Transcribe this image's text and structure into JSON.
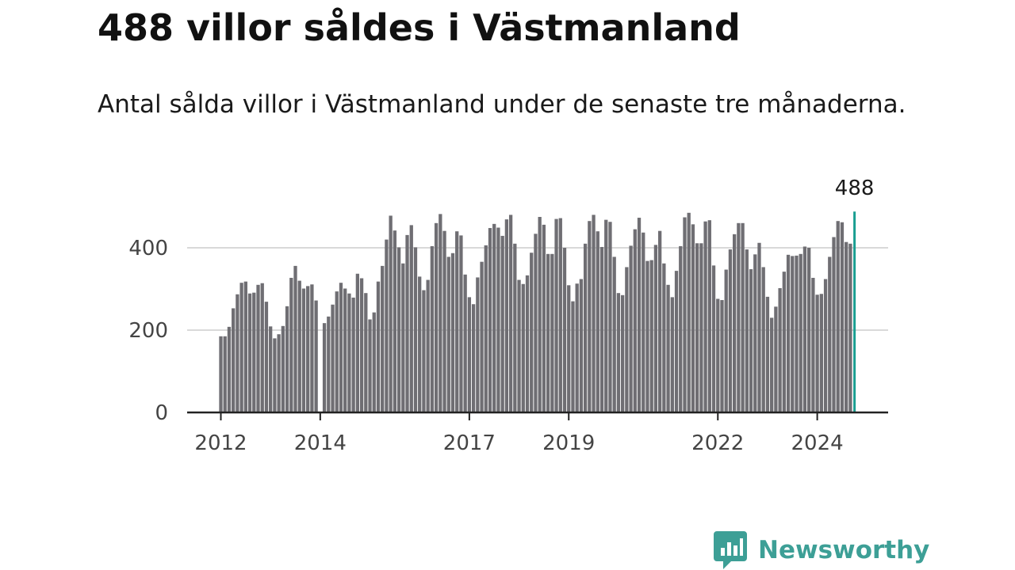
{
  "title": "488 villor såldes i Västmanland",
  "subtitle": "Antal sålda villor i Västmanland under de senaste tre månaderna.",
  "brand": {
    "name": "Newsworthy",
    "color": "#3d9f96",
    "icon": "newsworthy-chart-bubble-icon"
  },
  "colors": {
    "bar": "#6f6e73",
    "highlight": "#1a9e91",
    "grid": "#d9d9d9",
    "axis": "#222222"
  },
  "chart_data": {
    "type": "bar",
    "title": "488 villor såldes i Västmanland",
    "ylim": [
      0,
      500
    ],
    "yticks": [
      0,
      200,
      400
    ],
    "xticks": [
      2012,
      2014,
      2017,
      2019,
      2022,
      2024
    ],
    "x_start": "2012-01",
    "grid": true,
    "highlight": {
      "label": "488",
      "value": 488,
      "x": "2024-10"
    },
    "values": [
      185,
      185,
      208,
      253,
      287,
      315,
      318,
      289,
      291,
      310,
      314,
      269,
      209,
      180,
      190,
      210,
      258,
      327,
      356,
      320,
      301,
      307,
      311,
      272,
      null,
      217,
      233,
      262,
      294,
      315,
      301,
      289,
      279,
      337,
      326,
      290,
      226,
      243,
      318,
      356,
      420,
      478,
      442,
      401,
      362,
      431,
      455,
      401,
      330,
      297,
      322,
      404,
      460,
      482,
      441,
      378,
      387,
      440,
      430,
      335,
      280,
      263,
      328,
      366,
      406,
      448,
      458,
      449,
      429,
      469,
      480,
      410,
      322,
      312,
      333,
      388,
      434,
      475,
      456,
      385,
      385,
      470,
      472,
      400,
      309,
      270,
      313,
      324,
      410,
      465,
      480,
      440,
      402,
      468,
      463,
      378,
      290,
      285,
      353,
      405,
      445,
      473,
      437,
      368,
      370,
      407,
      441,
      362,
      310,
      280,
      344,
      404,
      474,
      485,
      457,
      411,
      411,
      464,
      467,
      357,
      276,
      273,
      347,
      396,
      433,
      460,
      460,
      396,
      348,
      384,
      412,
      353,
      281,
      230,
      257,
      302,
      342,
      383,
      380,
      381,
      385,
      403,
      400,
      327,
      286,
      288,
      324,
      378,
      426,
      465,
      462,
      414,
      410,
      488
    ]
  }
}
